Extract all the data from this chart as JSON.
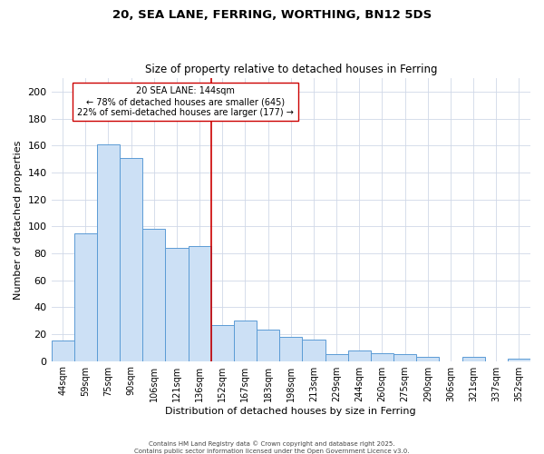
{
  "title": "20, SEA LANE, FERRING, WORTHING, BN12 5DS",
  "subtitle": "Size of property relative to detached houses in Ferring",
  "xlabel": "Distribution of detached houses by size in Ferring",
  "ylabel": "Number of detached properties",
  "categories": [
    "44sqm",
    "59sqm",
    "75sqm",
    "90sqm",
    "106sqm",
    "121sqm",
    "136sqm",
    "152sqm",
    "167sqm",
    "183sqm",
    "198sqm",
    "213sqm",
    "229sqm",
    "244sqm",
    "260sqm",
    "275sqm",
    "290sqm",
    "306sqm",
    "321sqm",
    "337sqm",
    "352sqm"
  ],
  "values": [
    15,
    95,
    161,
    151,
    98,
    84,
    85,
    27,
    30,
    23,
    18,
    16,
    5,
    8,
    6,
    5,
    3,
    0,
    3,
    0,
    2
  ],
  "bar_color": "#cce0f5",
  "bar_edge_color": "#5b9bd5",
  "vline_index": 7,
  "vline_color": "#cc0000",
  "annotation_line1": "20 SEA LANE: 144sqm",
  "annotation_line2": "← 78% of detached houses are smaller (645)",
  "annotation_line3": "22% of semi-detached houses are larger (177) →",
  "ylim": [
    0,
    210
  ],
  "yticks": [
    0,
    20,
    40,
    60,
    80,
    100,
    120,
    140,
    160,
    180,
    200
  ],
  "footer1": "Contains HM Land Registry data © Crown copyright and database right 2025.",
  "footer2": "Contains public sector information licensed under the Open Government Licence v3.0.",
  "background_color": "#ffffff",
  "grid_color": "#d0d8e8"
}
